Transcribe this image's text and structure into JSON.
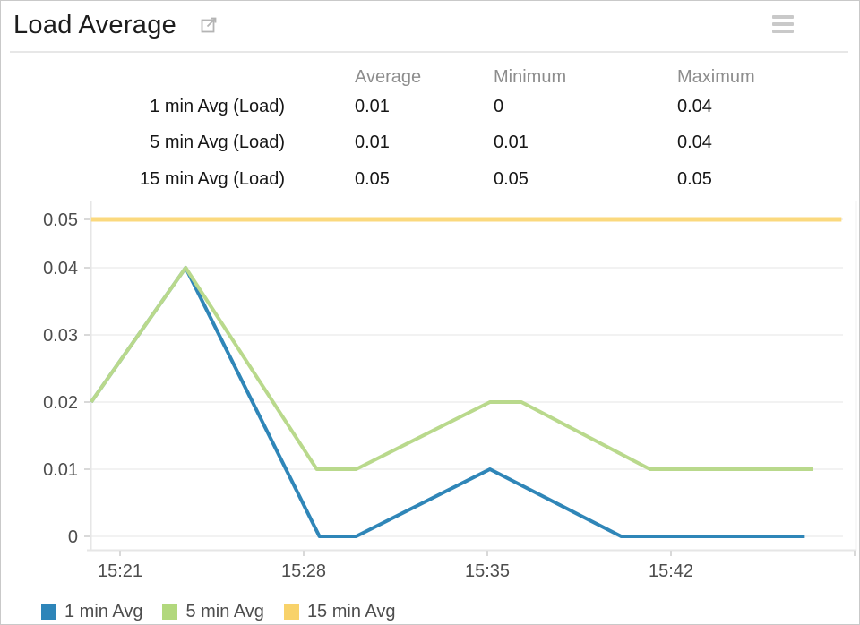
{
  "header": {
    "title": "Load Average"
  },
  "stats_table": {
    "columns": [
      "Average",
      "Minimum",
      "Maximum"
    ],
    "rows": [
      {
        "label": "1 min Avg (Load)",
        "average": "0.01",
        "minimum": "0",
        "maximum": "0.04"
      },
      {
        "label": "5 min Avg (Load)",
        "average": "0.01",
        "minimum": "0.01",
        "maximum": "0.04"
      },
      {
        "label": "15 min Avg (Load)",
        "average": "0.05",
        "minimum": "0.05",
        "maximum": "0.05"
      }
    ]
  },
  "chart_data": {
    "type": "line",
    "title": "Load Average",
    "xlabel": "",
    "ylabel": "",
    "x_unit": "minutes since 15:00",
    "grid": true,
    "legend_position": "bottom-left",
    "x_axis": {
      "tick_minutes": [
        21,
        28,
        35,
        42
      ],
      "tick_labels": [
        "15:21",
        "15:28",
        "15:35",
        "15:42"
      ],
      "extra_tick_minute": 49,
      "range_minutes": [
        19.9,
        48.5
      ]
    },
    "y_axis": {
      "tick_values": [
        0,
        0.01,
        0.02,
        0.03,
        0.04,
        0.05
      ],
      "tick_labels": [
        "0",
        "0.01",
        "0.02",
        "0.03",
        "0.04",
        "0.05"
      ],
      "range": [
        0,
        0.05
      ]
    },
    "series": [
      {
        "name": "1 min Avg",
        "color": "#2f86b8",
        "width": 4,
        "points": [
          [
            19.9,
            0.02
          ],
          [
            23.5,
            0.04
          ],
          [
            28.6,
            0
          ],
          [
            30.0,
            0
          ],
          [
            35.1,
            0.01
          ],
          [
            40.1,
            0
          ],
          [
            47.1,
            0
          ]
        ]
      },
      {
        "name": "5 min Avg",
        "color": "#b9d98c",
        "width": 4,
        "points": [
          [
            19.9,
            0.02
          ],
          [
            23.5,
            0.04
          ],
          [
            28.5,
            0.01
          ],
          [
            30.0,
            0.01
          ],
          [
            35.1,
            0.02
          ],
          [
            36.3,
            0.02
          ],
          [
            41.2,
            0.01
          ],
          [
            47.4,
            0.01
          ]
        ]
      },
      {
        "name": "15 min Avg",
        "color": "#fbd97e",
        "width": 5,
        "points": [
          [
            19.9,
            0.05
          ],
          [
            48.5,
            0.05
          ]
        ]
      }
    ]
  },
  "legend": {
    "items": [
      {
        "label": "1 min Avg",
        "color": "#2e85b9"
      },
      {
        "label": "5 min Avg",
        "color": "#b2d87d"
      },
      {
        "label": "15 min Avg",
        "color": "#f8d26a"
      }
    ]
  },
  "colors": {
    "gridline": "#ededed",
    "axis_line": "#e6e6e6",
    "tick": "#d9d9d9",
    "axis_label": "#4d4d4d"
  }
}
